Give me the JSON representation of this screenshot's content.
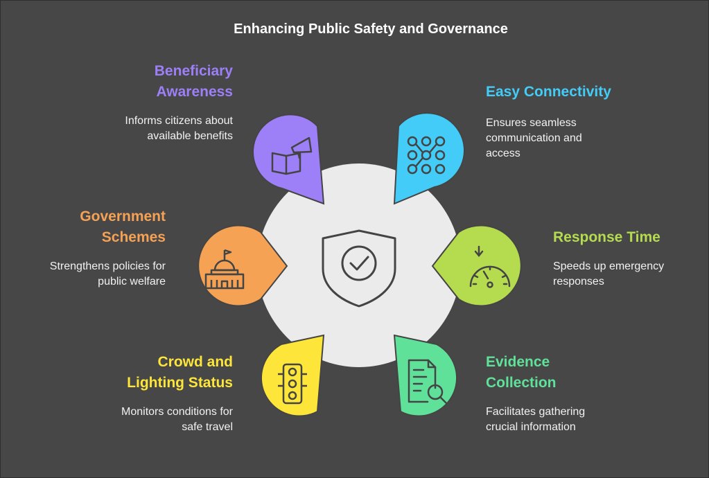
{
  "title": "Enhancing Public Safety and Governance",
  "colors": {
    "background": "#474747",
    "center": "#ebebeb",
    "beneficiary": "#9d7ff7",
    "connectivity": "#43ccf8",
    "government": "#f5a255",
    "response": "#b5dc4f",
    "crowd": "#fde53a",
    "evidence": "#5fe19a"
  },
  "center": {
    "icon": "shield-check-icon"
  },
  "items": {
    "beneficiary": {
      "title_line1": "Beneficiary",
      "title_line2": "Awareness",
      "desc_line1": "Informs citizens about",
      "desc_line2": "available benefits",
      "icon": "book-megaphone-icon"
    },
    "connectivity": {
      "title_line1": "Easy Connectivity",
      "desc_line1": "Ensures seamless",
      "desc_line2": "communication and",
      "desc_line3": "access",
      "icon": "network-grid-icon"
    },
    "government": {
      "title_line1": "Government",
      "title_line2": "Schemes",
      "desc_line1": "Strengthens policies for",
      "desc_line2": "public welfare",
      "icon": "government-building-icon"
    },
    "response": {
      "title_line1": "Response Time",
      "desc_line1": "Speeds up emergency",
      "desc_line2": "responses",
      "icon": "speedometer-icon"
    },
    "crowd": {
      "title_line1": "Crowd and",
      "title_line2": "Lighting Status",
      "desc_line1": "Monitors conditions for",
      "desc_line2": "safe travel",
      "icon": "traffic-light-icon"
    },
    "evidence": {
      "title_line1": "Evidence",
      "title_line2": "Collection",
      "desc_line1": "Facilitates gathering",
      "desc_line2": "crucial information",
      "icon": "document-search-icon"
    }
  }
}
